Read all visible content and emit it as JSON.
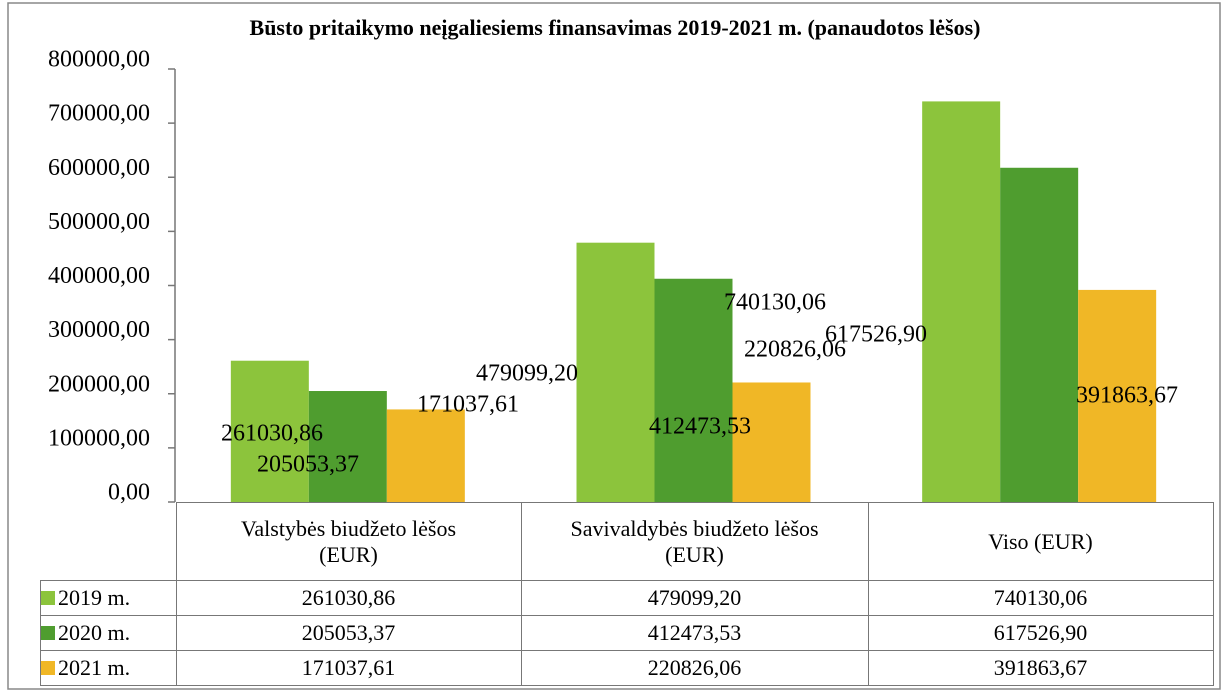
{
  "chart_data": {
    "type": "bar",
    "title": "Būsto pritaikymo neįgaliesiems finansavimas 2019-2021 m. (panaudotos lėšos)",
    "categories": [
      "Valstybės biudžeto lėšos (EUR)",
      "Savivaldybės biudžeto lėšos (EUR)",
      "Viso (EUR)"
    ],
    "series": [
      {
        "name": "2019 m.",
        "color": "#8cc43c",
        "values": [
          261030.86,
          479099.2,
          740130.06
        ],
        "value_labels": [
          "261030,86",
          "479099,20",
          "740130,06"
        ]
      },
      {
        "name": "2020 m.",
        "color": "#4f9d2f",
        "values": [
          205053.37,
          412473.53,
          617526.9
        ],
        "value_labels": [
          "205053,37",
          "412473,53",
          "617526,90"
        ]
      },
      {
        "name": "2021 m.",
        "color": "#f0b726",
        "values": [
          171037.61,
          220826.06,
          391863.67
        ],
        "value_labels": [
          "171037,61",
          "220826,06",
          "391863,67"
        ]
      }
    ],
    "ylim": [
      0,
      800000
    ],
    "yticks": [
      {
        "value": 0,
        "label": "0,00"
      },
      {
        "value": 100000,
        "label": "100000,00"
      },
      {
        "value": 200000,
        "label": "200000,00"
      },
      {
        "value": 300000,
        "label": "300000,00"
      },
      {
        "value": 400000,
        "label": "400000,00"
      },
      {
        "value": 500000,
        "label": "500000,00"
      },
      {
        "value": 600000,
        "label": "600000,00"
      },
      {
        "value": 700000,
        "label": "700000,00"
      },
      {
        "value": 800000,
        "label": "800000,00"
      }
    ],
    "grid": false
  }
}
